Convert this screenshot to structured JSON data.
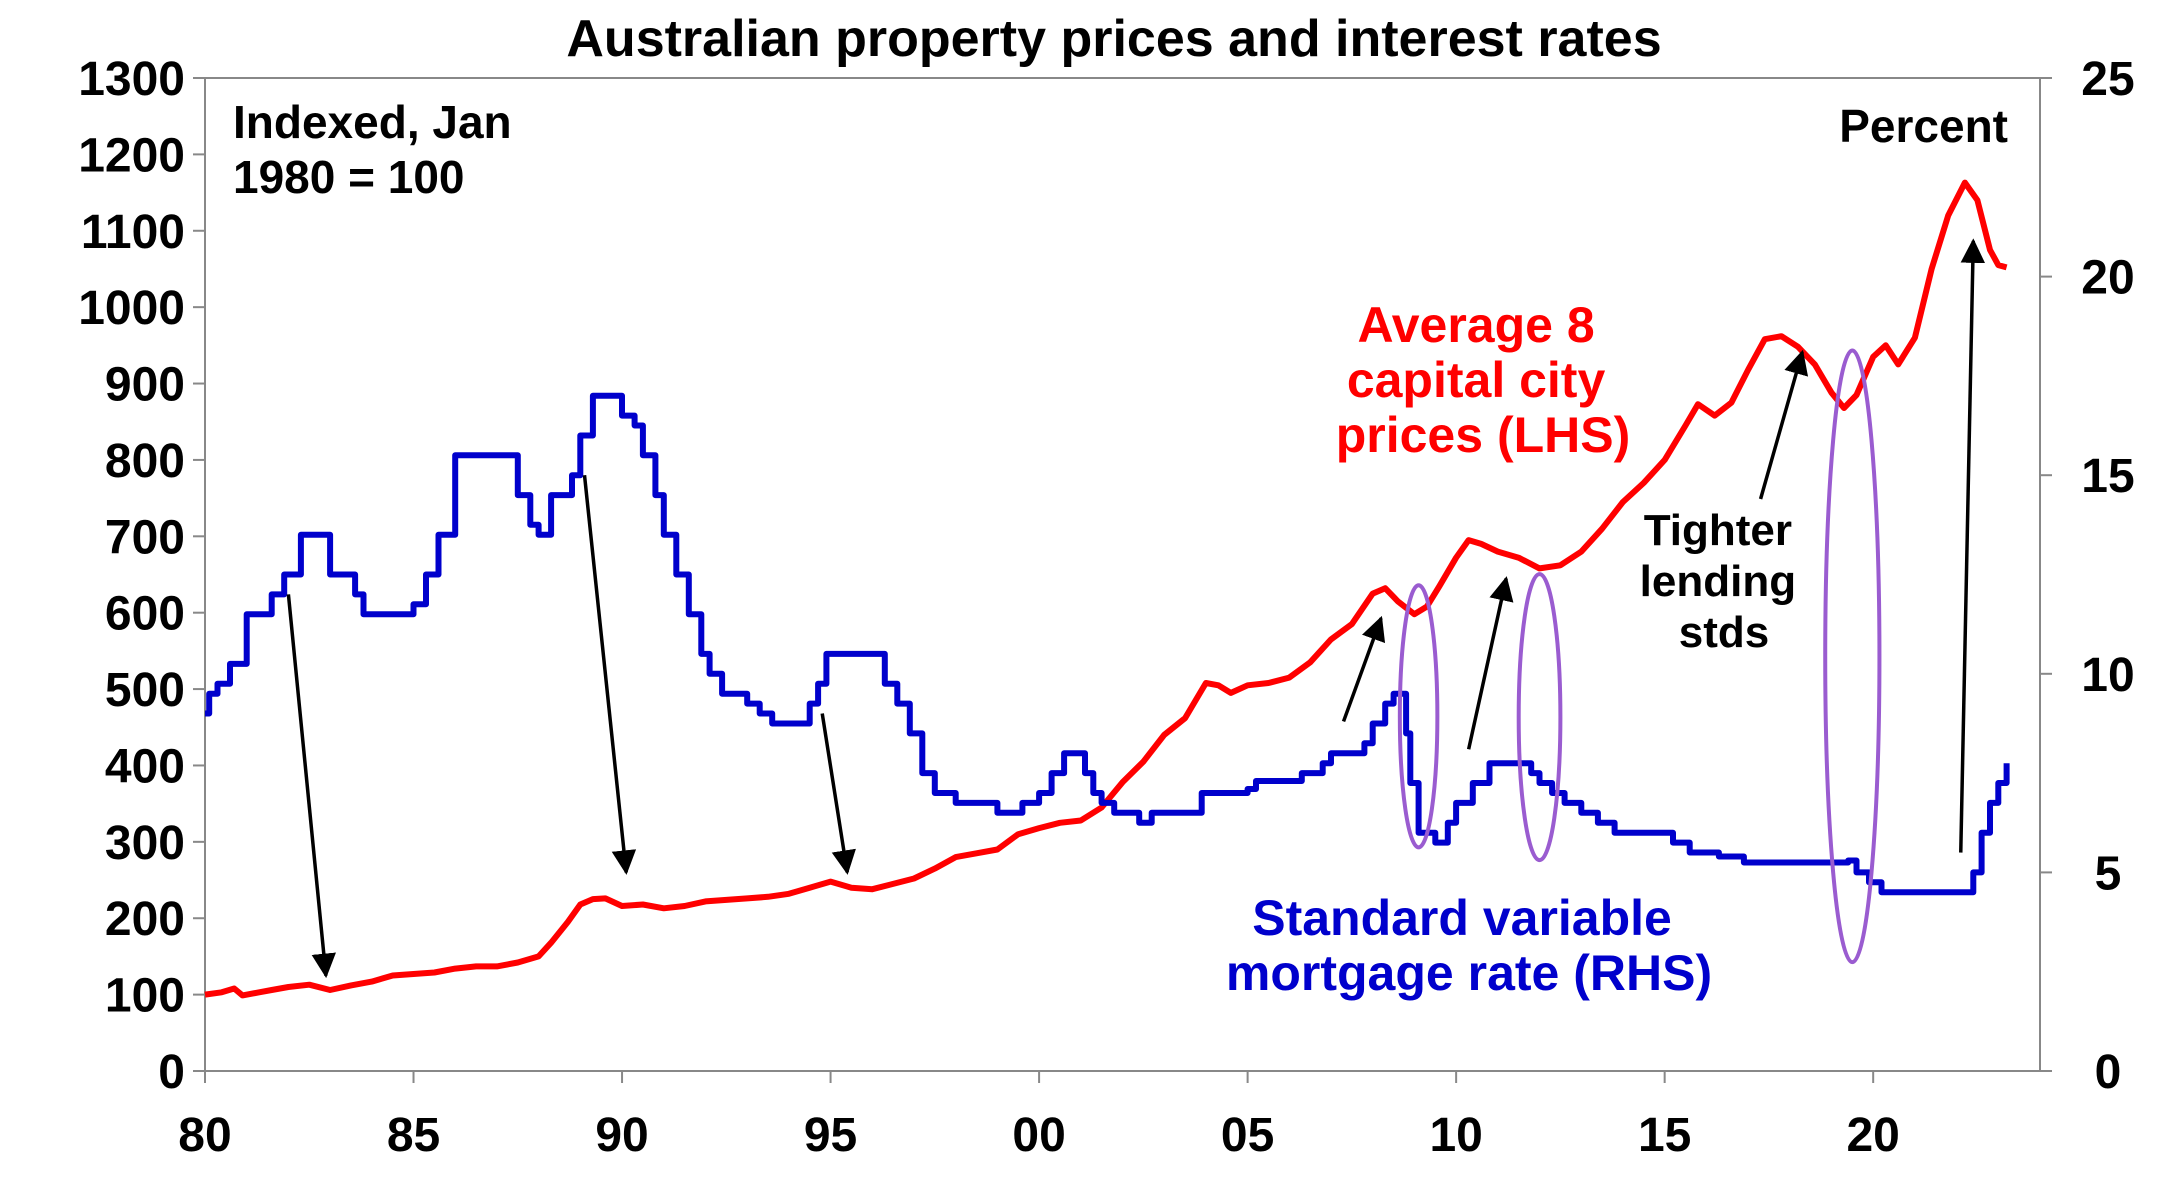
{
  "chart_data": {
    "type": "line",
    "title": "Australian property prices and interest rates",
    "left_axis_note": [
      "Indexed, Jan",
      "1980 = 100"
    ],
    "right_axis_note": "Percent",
    "x_range": [
      1980,
      2024
    ],
    "x_ticks": [
      {
        "value": 1980,
        "label": "80"
      },
      {
        "value": 1985,
        "label": "85"
      },
      {
        "value": 1990,
        "label": "90"
      },
      {
        "value": 1995,
        "label": "95"
      },
      {
        "value": 2000,
        "label": "00"
      },
      {
        "value": 2005,
        "label": "05"
      },
      {
        "value": 2010,
        "label": "10"
      },
      {
        "value": 2015,
        "label": "15"
      },
      {
        "value": 2020,
        "label": "20"
      }
    ],
    "y_left": {
      "range": [
        0,
        1300
      ],
      "ticks": [
        0,
        100,
        200,
        300,
        400,
        500,
        600,
        700,
        800,
        900,
        1000,
        1100,
        1200,
        1300
      ]
    },
    "y_right": {
      "range": [
        0,
        25
      ],
      "ticks": [
        0,
        5,
        10,
        15,
        20,
        25
      ]
    },
    "series": [
      {
        "name": "Average 8 capital city prices (LHS)",
        "label_lines": [
          "Average 8",
          "capital city",
          "prices (LHS)"
        ],
        "axis": "left",
        "color": "#ff0000",
        "points": [
          [
            1980.0,
            100
          ],
          [
            1980.4,
            103
          ],
          [
            1980.7,
            108
          ],
          [
            1980.9,
            99
          ],
          [
            1981.3,
            103
          ],
          [
            1981.6,
            106
          ],
          [
            1982.0,
            110
          ],
          [
            1982.5,
            113
          ],
          [
            1983.0,
            106
          ],
          [
            1983.5,
            112
          ],
          [
            1984.0,
            117
          ],
          [
            1984.5,
            125
          ],
          [
            1985.0,
            127
          ],
          [
            1985.5,
            129
          ],
          [
            1986.0,
            134
          ],
          [
            1986.5,
            137
          ],
          [
            1987.0,
            137
          ],
          [
            1987.5,
            142
          ],
          [
            1988.0,
            150
          ],
          [
            1988.3,
            168
          ],
          [
            1988.7,
            195
          ],
          [
            1989.0,
            218
          ],
          [
            1989.3,
            225
          ],
          [
            1989.6,
            226
          ],
          [
            1990.0,
            216
          ],
          [
            1990.5,
            218
          ],
          [
            1991.0,
            213
          ],
          [
            1991.5,
            216
          ],
          [
            1992.0,
            222
          ],
          [
            1992.5,
            224
          ],
          [
            1993.0,
            226
          ],
          [
            1993.5,
            228
          ],
          [
            1994.0,
            232
          ],
          [
            1994.5,
            240
          ],
          [
            1995.0,
            248
          ],
          [
            1995.5,
            240
          ],
          [
            1996.0,
            238
          ],
          [
            1996.5,
            245
          ],
          [
            1997.0,
            252
          ],
          [
            1997.5,
            265
          ],
          [
            1998.0,
            280
          ],
          [
            1998.5,
            285
          ],
          [
            1999.0,
            290
          ],
          [
            1999.5,
            310
          ],
          [
            2000.0,
            318
          ],
          [
            2000.5,
            325
          ],
          [
            2001.0,
            328
          ],
          [
            2001.5,
            345
          ],
          [
            2002.0,
            378
          ],
          [
            2002.5,
            405
          ],
          [
            2003.0,
            440
          ],
          [
            2003.5,
            462
          ],
          [
            2004.0,
            508
          ],
          [
            2004.3,
            505
          ],
          [
            2004.6,
            495
          ],
          [
            2005.0,
            505
          ],
          [
            2005.5,
            508
          ],
          [
            2006.0,
            515
          ],
          [
            2006.5,
            535
          ],
          [
            2007.0,
            565
          ],
          [
            2007.5,
            585
          ],
          [
            2008.0,
            625
          ],
          [
            2008.3,
            632
          ],
          [
            2008.6,
            615
          ],
          [
            2009.0,
            598
          ],
          [
            2009.3,
            608
          ],
          [
            2009.6,
            635
          ],
          [
            2010.0,
            672
          ],
          [
            2010.3,
            695
          ],
          [
            2010.6,
            690
          ],
          [
            2011.0,
            680
          ],
          [
            2011.5,
            672
          ],
          [
            2012.0,
            658
          ],
          [
            2012.5,
            662
          ],
          [
            2013.0,
            680
          ],
          [
            2013.5,
            710
          ],
          [
            2014.0,
            745
          ],
          [
            2014.5,
            770
          ],
          [
            2015.0,
            800
          ],
          [
            2015.5,
            845
          ],
          [
            2015.8,
            873
          ],
          [
            2016.2,
            858
          ],
          [
            2016.6,
            875
          ],
          [
            2017.0,
            918
          ],
          [
            2017.4,
            958
          ],
          [
            2017.8,
            962
          ],
          [
            2018.2,
            948
          ],
          [
            2018.6,
            925
          ],
          [
            2019.0,
            888
          ],
          [
            2019.3,
            868
          ],
          [
            2019.6,
            885
          ],
          [
            2020.0,
            935
          ],
          [
            2020.3,
            950
          ],
          [
            2020.6,
            925
          ],
          [
            2021.0,
            960
          ],
          [
            2021.4,
            1050
          ],
          [
            2021.8,
            1120
          ],
          [
            2022.2,
            1163
          ],
          [
            2022.5,
            1140
          ],
          [
            2022.8,
            1075
          ],
          [
            2023.0,
            1055
          ],
          [
            2023.2,
            1052
          ]
        ]
      },
      {
        "name": "Standard variable mortgage rate (RHS)",
        "label_lines": [
          "Standard variable",
          "mortgage rate (RHS)"
        ],
        "axis": "right",
        "color": "#0000cc",
        "step": true,
        "points": [
          [
            1980.0,
            9.0
          ],
          [
            1980.1,
            9.5
          ],
          [
            1980.3,
            9.75
          ],
          [
            1980.6,
            10.25
          ],
          [
            1981.0,
            11.5
          ],
          [
            1981.6,
            12.0
          ],
          [
            1981.9,
            12.5
          ],
          [
            1982.3,
            13.5
          ],
          [
            1983.0,
            12.5
          ],
          [
            1983.6,
            12.0
          ],
          [
            1983.8,
            11.5
          ],
          [
            1985.0,
            11.75
          ],
          [
            1985.3,
            12.5
          ],
          [
            1985.6,
            13.5
          ],
          [
            1986.0,
            15.5
          ],
          [
            1987.5,
            14.5
          ],
          [
            1987.8,
            13.75
          ],
          [
            1988.0,
            13.5
          ],
          [
            1988.3,
            14.5
          ],
          [
            1988.8,
            15.0
          ],
          [
            1989.0,
            16.0
          ],
          [
            1989.3,
            17.0
          ],
          [
            1990.0,
            16.5
          ],
          [
            1990.3,
            16.25
          ],
          [
            1990.5,
            15.5
          ],
          [
            1990.8,
            14.5
          ],
          [
            1991.0,
            13.5
          ],
          [
            1991.3,
            12.5
          ],
          [
            1991.6,
            11.5
          ],
          [
            1991.9,
            10.5
          ],
          [
            1992.1,
            10.0
          ],
          [
            1992.4,
            9.5
          ],
          [
            1993.0,
            9.25
          ],
          [
            1993.3,
            9.0
          ],
          [
            1993.6,
            8.75
          ],
          [
            1994.5,
            9.25
          ],
          [
            1994.7,
            9.75
          ],
          [
            1994.9,
            10.5
          ],
          [
            1996.0,
            10.5
          ],
          [
            1996.3,
            9.75
          ],
          [
            1996.6,
            9.25
          ],
          [
            1996.9,
            8.5
          ],
          [
            1997.2,
            7.5
          ],
          [
            1997.5,
            7.0
          ],
          [
            1998.0,
            6.75
          ],
          [
            1999.0,
            6.5
          ],
          [
            1999.6,
            6.75
          ],
          [
            2000.0,
            7.0
          ],
          [
            2000.3,
            7.5
          ],
          [
            2000.6,
            8.0
          ],
          [
            2001.1,
            7.5
          ],
          [
            2001.3,
            7.0
          ],
          [
            2001.5,
            6.75
          ],
          [
            2001.8,
            6.5
          ],
          [
            2002.4,
            6.25
          ],
          [
            2002.7,
            6.5
          ],
          [
            2003.0,
            6.5
          ],
          [
            2003.9,
            7.0
          ],
          [
            2005.0,
            7.1
          ],
          [
            2005.2,
            7.3
          ],
          [
            2006.3,
            7.5
          ],
          [
            2006.8,
            7.75
          ],
          [
            2007.0,
            8.0
          ],
          [
            2007.8,
            8.25
          ],
          [
            2008.0,
            8.75
          ],
          [
            2008.3,
            9.25
          ],
          [
            2008.5,
            9.5
          ],
          [
            2008.8,
            8.5
          ],
          [
            2008.9,
            7.25
          ],
          [
            2009.1,
            6.0
          ],
          [
            2009.5,
            5.75
          ],
          [
            2009.8,
            6.25
          ],
          [
            2010.0,
            6.75
          ],
          [
            2010.4,
            7.25
          ],
          [
            2010.8,
            7.75
          ],
          [
            2011.8,
            7.5
          ],
          [
            2012.0,
            7.25
          ],
          [
            2012.3,
            7.0
          ],
          [
            2012.6,
            6.75
          ],
          [
            2013.0,
            6.5
          ],
          [
            2013.4,
            6.25
          ],
          [
            2013.8,
            6.0
          ],
          [
            2015.2,
            5.75
          ],
          [
            2015.6,
            5.5
          ],
          [
            2016.3,
            5.4
          ],
          [
            2016.9,
            5.25
          ],
          [
            2017.7,
            5.25
          ],
          [
            2019.4,
            5.3
          ],
          [
            2019.6,
            5.0
          ],
          [
            2019.9,
            4.75
          ],
          [
            2020.2,
            4.5
          ],
          [
            2021.0,
            4.5
          ],
          [
            2022.2,
            4.5
          ],
          [
            2022.4,
            5.0
          ],
          [
            2022.6,
            6.0
          ],
          [
            2022.8,
            6.75
          ],
          [
            2023.0,
            7.25
          ],
          [
            2023.2,
            7.75
          ]
        ]
      }
    ],
    "annotations": {
      "tighter_lending": [
        "Tighter",
        "lending",
        "stds"
      ],
      "arrows": [
        {
          "from": [
            1982.0,
            12.0
          ],
          "to": [
            1982.9,
            2.4
          ],
          "from_axis": "right",
          "to_axis": "right"
        },
        {
          "from": [
            1989.1,
            15.0
          ],
          "to": [
            1990.1,
            5.0
          ],
          "from_axis": "right",
          "to_axis": "right"
        },
        {
          "from": [
            1994.8,
            9.0
          ],
          "to": [
            1995.4,
            5.0
          ],
          "from_axis": "right",
          "to_axis": "right"
        },
        {
          "from": [
            2007.3,
            8.8
          ],
          "to": [
            2008.2,
            11.4
          ],
          "from_axis": "right",
          "to_axis": "right"
        },
        {
          "from": [
            2010.3,
            8.1
          ],
          "to": [
            2011.2,
            12.4
          ],
          "from_axis": "right",
          "to_axis": "right"
        },
        {
          "from": [
            2017.3,
            14.4
          ],
          "to": [
            2018.3,
            18.1
          ],
          "from_axis": "right",
          "to_axis": "right"
        },
        {
          "from": [
            2022.1,
            5.5
          ],
          "to": [
            2022.4,
            20.9
          ],
          "from_axis": "right",
          "to_axis": "right"
        }
      ],
      "ellipses": [
        {
          "center": [
            2009.1,
            8.93
          ],
          "half_width_years": 0.45,
          "half_height_pct": 3.3,
          "axis": "right"
        },
        {
          "center": [
            2012.0,
            8.91
          ],
          "half_width_years": 0.5,
          "half_height_pct": 3.6,
          "axis": "right"
        },
        {
          "center": [
            2019.5,
            10.44
          ],
          "half_width_years": 0.65,
          "half_height_pct": 7.7,
          "axis": "right"
        }
      ]
    },
    "colors": {
      "price": "#ff0000",
      "rate": "#0000cc",
      "annotation": "#000000",
      "ellipse": "#9a5cd0"
    },
    "grid": false
  }
}
